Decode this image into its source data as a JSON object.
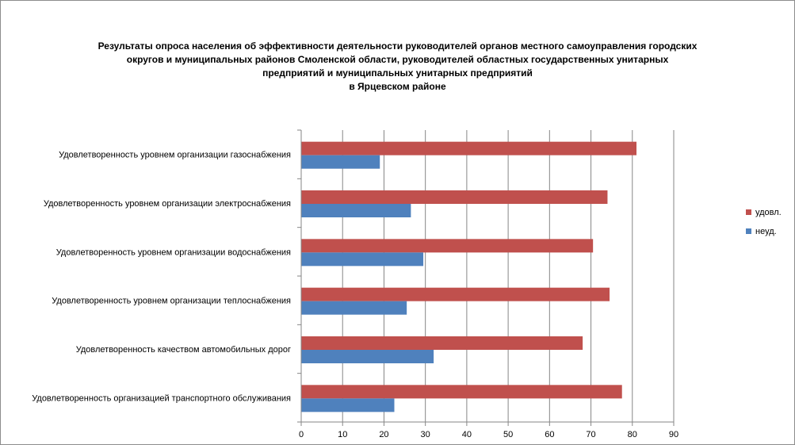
{
  "chart_data": {
    "type": "bar",
    "orientation": "horizontal",
    "title_lines": [
      "Результаты опроса населения об эффективности деятельности руководителей органов местного самоуправления городских",
      "округов и муниципальных районов Смоленской области, руководителей областных государственных унитарных",
      "предприятий и муниципальных унитарных предприятий",
      "в Ярцевском районе"
    ],
    "categories": [
      "Удовлетворенность  уровнем организации газоснабжения",
      "Удовлетворенность  уровнем организации электроснабжения",
      "Удовлетворенность  уровнем организации водоснабжения",
      "Удовлетворенность  уровнем организации теплоснабжения",
      "Удовлетворенность  качеством автомобильных дорог",
      "Удовлетворенность  организацией транспортного обслуживания"
    ],
    "series": [
      {
        "name": "удовл.",
        "color": "#c0504d",
        "values": [
          81,
          74,
          70.5,
          74.5,
          68,
          77.5
        ]
      },
      {
        "name": "неуд.",
        "color": "#4f81bd",
        "values": [
          19,
          26.5,
          29.5,
          25.5,
          32,
          22.5
        ]
      }
    ],
    "xlim": [
      0,
      90
    ],
    "xticks": [
      0,
      10,
      20,
      30,
      40,
      50,
      60,
      70,
      80,
      90
    ],
    "grid": true,
    "legend_position": "right",
    "xlabel": "",
    "ylabel": ""
  }
}
